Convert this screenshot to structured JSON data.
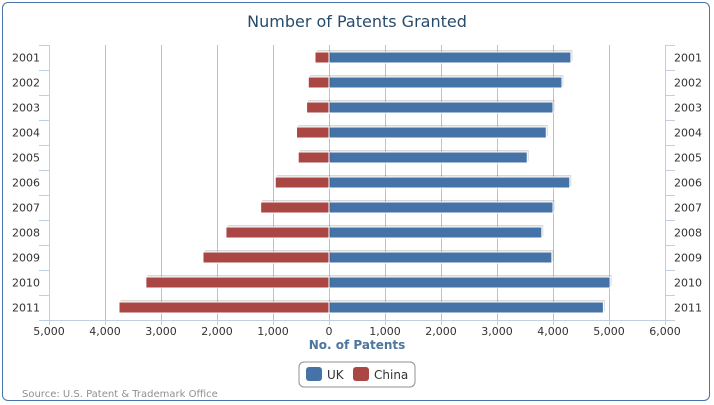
{
  "chart_data": {
    "type": "bar",
    "orientation": "horizontal",
    "title": "Number of Patents Granted",
    "xlabel": "No. of Patents",
    "ylabel": "",
    "categories": [
      "2001",
      "2002",
      "2003",
      "2004",
      "2005",
      "2006",
      "2007",
      "2008",
      "2009",
      "2010",
      "2011"
    ],
    "series": [
      {
        "name": "UK",
        "color": "#4572a7",
        "values": [
          4320,
          4160,
          4000,
          3880,
          3540,
          4300,
          4000,
          3800,
          3980,
          5020,
          4900
        ]
      },
      {
        "name": "China",
        "color": "#aa4643",
        "values": [
          -250,
          -370,
          -400,
          -580,
          -550,
          -960,
          -1220,
          -1840,
          -2250,
          -3270,
          -3750
        ]
      }
    ],
    "xlim": [
      -5000,
      6000
    ],
    "x_ticks": [
      -5000,
      -4000,
      -3000,
      -2000,
      -1000,
      0,
      1000,
      2000,
      3000,
      4000,
      5000,
      6000
    ],
    "x_tick_labels": [
      "5,000",
      "4,000",
      "3,000",
      "2,000",
      "1,000",
      "0",
      "1,000",
      "2,000",
      "3,000",
      "4,000",
      "5,000",
      "6,000"
    ],
    "grid": true,
    "legend_position": "bottom-center",
    "credit": "Source: U.S. Patent & Trademark Office"
  }
}
